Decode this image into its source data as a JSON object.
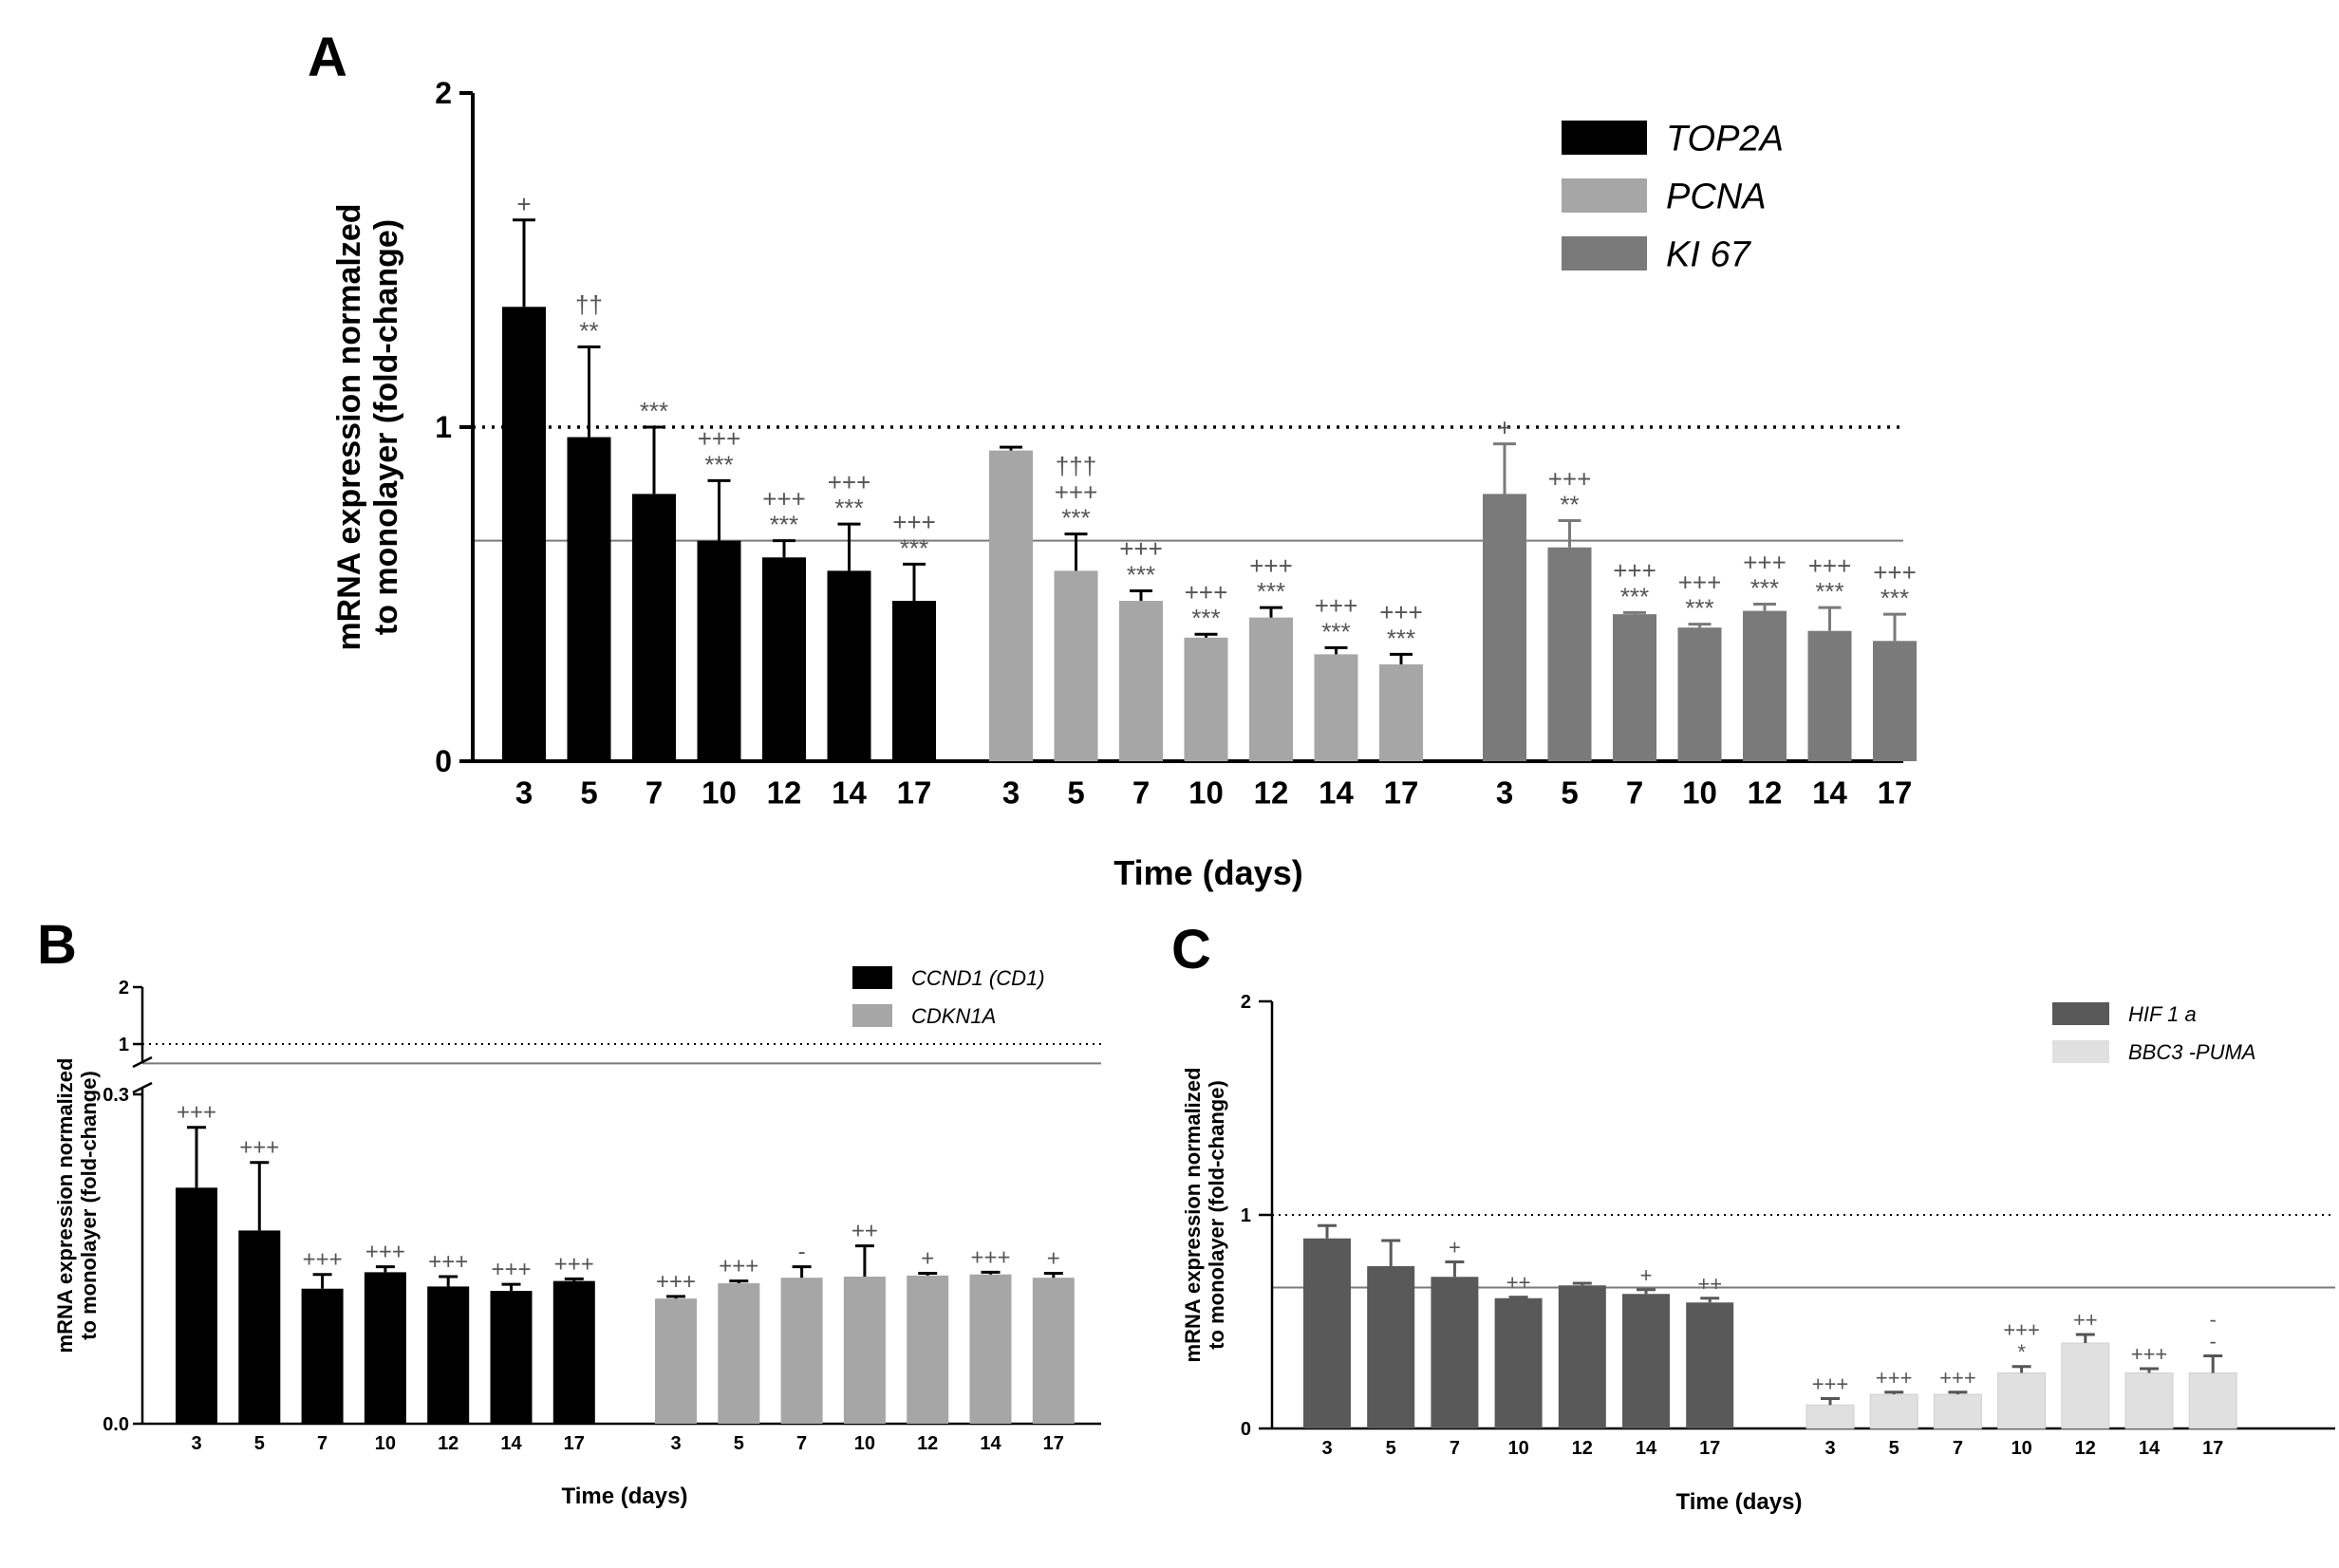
{
  "chart_data": [
    {
      "panel": "A",
      "type": "bar",
      "ylabel": "mRNA expression normalzed to monolayer (fold-change)",
      "ylabel_lines": [
        "mRNA expression normalzed",
        "to monolayer (fold-change)"
      ],
      "xlabel": "Time (days)",
      "ylim": [
        0,
        2
      ],
      "yticks": [
        "0",
        "1",
        "2"
      ],
      "reference_dotted": 1.0,
      "reference_solid": 0.66,
      "categories": [
        "3",
        "5",
        "7",
        "10",
        "12",
        "14",
        "17"
      ],
      "series": [
        {
          "name": "TOP2A",
          "color": "#000000",
          "values": [
            1.36,
            0.97,
            0.8,
            0.66,
            0.61,
            0.57,
            0.48
          ],
          "errors": [
            0.26,
            0.27,
            0.2,
            0.18,
            0.05,
            0.14,
            0.11
          ],
          "annotations": [
            "+",
            "††\n**",
            "***",
            "+++\n***",
            "+++\n***",
            "+++\n***",
            "+++\n***"
          ]
        },
        {
          "name": "PCNA",
          "color": "#a6a6a6",
          "values": [
            0.93,
            0.57,
            0.48,
            0.37,
            0.43,
            0.32,
            0.29
          ],
          "errors": [
            0.01,
            0.11,
            0.03,
            0.01,
            0.03,
            0.02,
            0.03
          ],
          "annotations": [
            "",
            "†††\n+++\n***",
            "+++\n***",
            "+++\n***",
            "+++\n***",
            "+++\n***",
            "+++\n***"
          ]
        },
        {
          "name": "KI 67",
          "color": "#7a7a7a",
          "values": [
            0.8,
            0.64,
            0.44,
            0.4,
            0.45,
            0.39,
            0.36
          ],
          "errors": [
            0.15,
            0.08,
            0.005,
            0.01,
            0.02,
            0.07,
            0.08
          ],
          "annotations": [
            "+",
            "+++\n**",
            "+++\n***",
            "+++\n***",
            "+++\n***",
            "+++\n***",
            "+++\n***"
          ]
        }
      ]
    },
    {
      "panel": "B",
      "type": "bar",
      "ylabel": "mRNA expression normalized to monolayer (fold-change)",
      "ylabel_lines": [
        "mRNA expression normalized",
        "to monolayer (fold-change)"
      ],
      "xlabel": "Time (days)",
      "ylim": [
        0,
        2
      ],
      "axis_break": [
        0.3,
        0.8
      ],
      "yticks_lower": [
        "0.0",
        "0.3"
      ],
      "yticks_upper": [
        "1",
        "2"
      ],
      "reference_dotted": 1.0,
      "reference_solid": 0.66,
      "categories": [
        "3",
        "5",
        "7",
        "10",
        "12",
        "14",
        "17"
      ],
      "series": [
        {
          "name": "CCND1 (CD1)",
          "color": "#000000",
          "values": [
            0.215,
            0.176,
            0.123,
            0.138,
            0.125,
            0.121,
            0.13
          ],
          "errors": [
            0.055,
            0.062,
            0.013,
            0.005,
            0.009,
            0.006,
            0.002
          ],
          "annotations": [
            "+++",
            "+++",
            "+++",
            "+++",
            "+++",
            "+++",
            "+++"
          ]
        },
        {
          "name": "CDKN1A",
          "color": "#a6a6a6",
          "values": [
            0.114,
            0.128,
            0.133,
            0.134,
            0.135,
            0.136,
            0.133
          ],
          "errors": [
            0.002,
            0.002,
            0.01,
            0.028,
            0.002,
            0.002,
            0.004
          ],
          "annotations": [
            "+++",
            "+++",
            "-",
            "++",
            "+",
            "+++",
            "+"
          ]
        }
      ]
    },
    {
      "panel": "C",
      "type": "bar",
      "ylabel": "mRNA expression normalized to monolayer (fold-change)",
      "ylabel_lines": [
        "mRNA expression normalized",
        "to monolayer (fold-change)"
      ],
      "xlabel": "Time (days)",
      "ylim": [
        0,
        2
      ],
      "yticks": [
        "0",
        "1",
        "2"
      ],
      "reference_dotted": 1.0,
      "reference_solid": 0.66,
      "categories": [
        "3",
        "5",
        "7",
        "10",
        "12",
        "14",
        "17"
      ],
      "series": [
        {
          "name": "HIF 1 a",
          "color": "#595959",
          "values": [
            0.89,
            0.76,
            0.71,
            0.61,
            0.67,
            0.63,
            0.59
          ],
          "errors": [
            0.06,
            0.12,
            0.07,
            0.005,
            0.01,
            0.02,
            0.02
          ],
          "annotations": [
            "",
            "",
            "+",
            "++",
            "",
            "+",
            "++"
          ]
        },
        {
          "name": "BBC3 -PUMA",
          "color": "#e0e0e0",
          "values": [
            0.11,
            0.16,
            0.16,
            0.26,
            0.4,
            0.26,
            0.26
          ],
          "errors": [
            0.03,
            0.01,
            0.01,
            0.03,
            0.04,
            0.02,
            0.08
          ],
          "annotations": [
            "+++",
            "+++",
            "+++",
            "+++\n*",
            "++",
            "+++",
            "-\n-"
          ]
        }
      ]
    }
  ]
}
